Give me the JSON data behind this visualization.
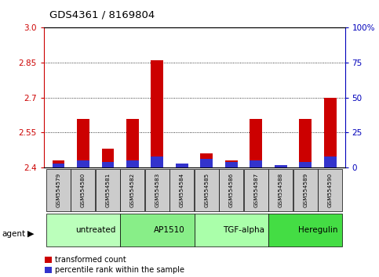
{
  "title": "GDS4361 / 8169804",
  "samples": [
    "GSM554579",
    "GSM554580",
    "GSM554581",
    "GSM554582",
    "GSM554583",
    "GSM554584",
    "GSM554585",
    "GSM554586",
    "GSM554587",
    "GSM554588",
    "GSM554589",
    "GSM554590"
  ],
  "red_values": [
    2.43,
    2.61,
    2.48,
    2.61,
    2.86,
    2.41,
    2.46,
    2.43,
    2.61,
    2.4,
    2.61,
    2.7
  ],
  "blue_values": [
    3,
    5,
    4,
    5,
    8,
    3,
    6,
    4,
    5,
    2,
    4,
    8
  ],
  "ylim_left": [
    2.4,
    3.0
  ],
  "ylim_right": [
    0,
    100
  ],
  "yticks_left": [
    2.4,
    2.55,
    2.7,
    2.85,
    3.0
  ],
  "yticks_right": [
    0,
    25,
    50,
    75,
    100
  ],
  "groups": [
    {
      "label": "untreated",
      "start": 0,
      "end": 3,
      "color": "#bbffbb"
    },
    {
      "label": "AP1510",
      "start": 3,
      "end": 6,
      "color": "#88ee88"
    },
    {
      "label": "TGF-alpha",
      "start": 6,
      "end": 9,
      "color": "#aaffaa"
    },
    {
      "label": "Heregulin",
      "start": 9,
      "end": 12,
      "color": "#44dd44"
    }
  ],
  "bar_width": 0.5,
  "red_color": "#cc0000",
  "blue_color": "#3333cc",
  "grid_color": "#000000",
  "background_plot": "#ffffff",
  "background_sample": "#cccccc",
  "left_axis_color": "#cc0000",
  "right_axis_color": "#0000bb",
  "legend_red": "transformed count",
  "legend_blue": "percentile rank within the sample",
  "agent_label": "agent"
}
